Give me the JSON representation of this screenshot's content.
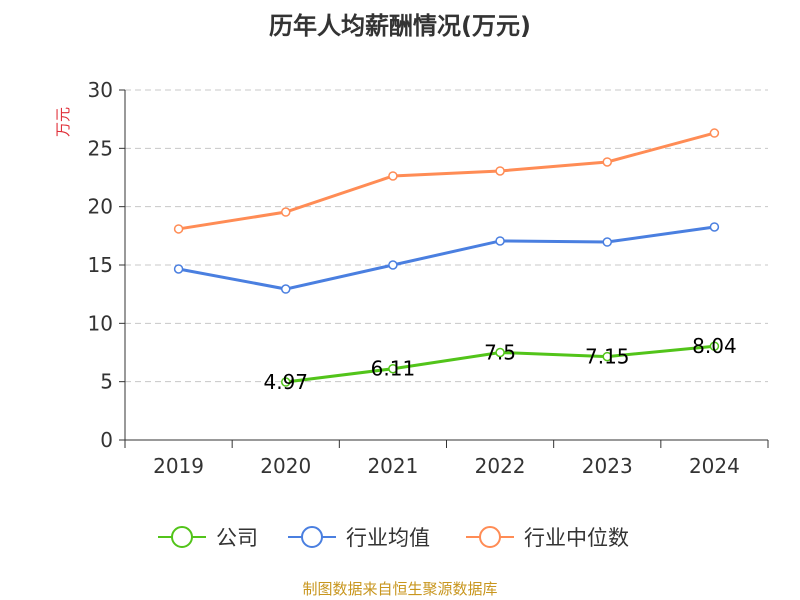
{
  "chart_data": {
    "type": "line",
    "title": "历年人均薪酬情况(万元)",
    "ylabel": "万元",
    "xlabel": "",
    "categories": [
      "2019",
      "2020",
      "2021",
      "2022",
      "2023",
      "2024"
    ],
    "ylim": [
      0,
      30
    ],
    "yticks": [
      0,
      5,
      10,
      15,
      20,
      25,
      30
    ],
    "grid": true,
    "legend_position": "bottom",
    "series": [
      {
        "name": "公司",
        "color": "#52c41a",
        "values": [
          null,
          4.97,
          6.11,
          7.5,
          7.15,
          8.04
        ],
        "labels": [
          "",
          "4.97",
          "6.11",
          "7.5",
          "7.15",
          "8.04"
        ]
      },
      {
        "name": "行业均值",
        "color": "#4a7fe0",
        "values": [
          14.66,
          12.94,
          15.0,
          17.06,
          16.97,
          18.26
        ]
      },
      {
        "name": "行业中位数",
        "color": "#ff8c55",
        "values": [
          18.09,
          19.54,
          22.63,
          23.06,
          23.83,
          26.31
        ]
      }
    ]
  },
  "source": "制图数据来自恒生聚源数据库"
}
